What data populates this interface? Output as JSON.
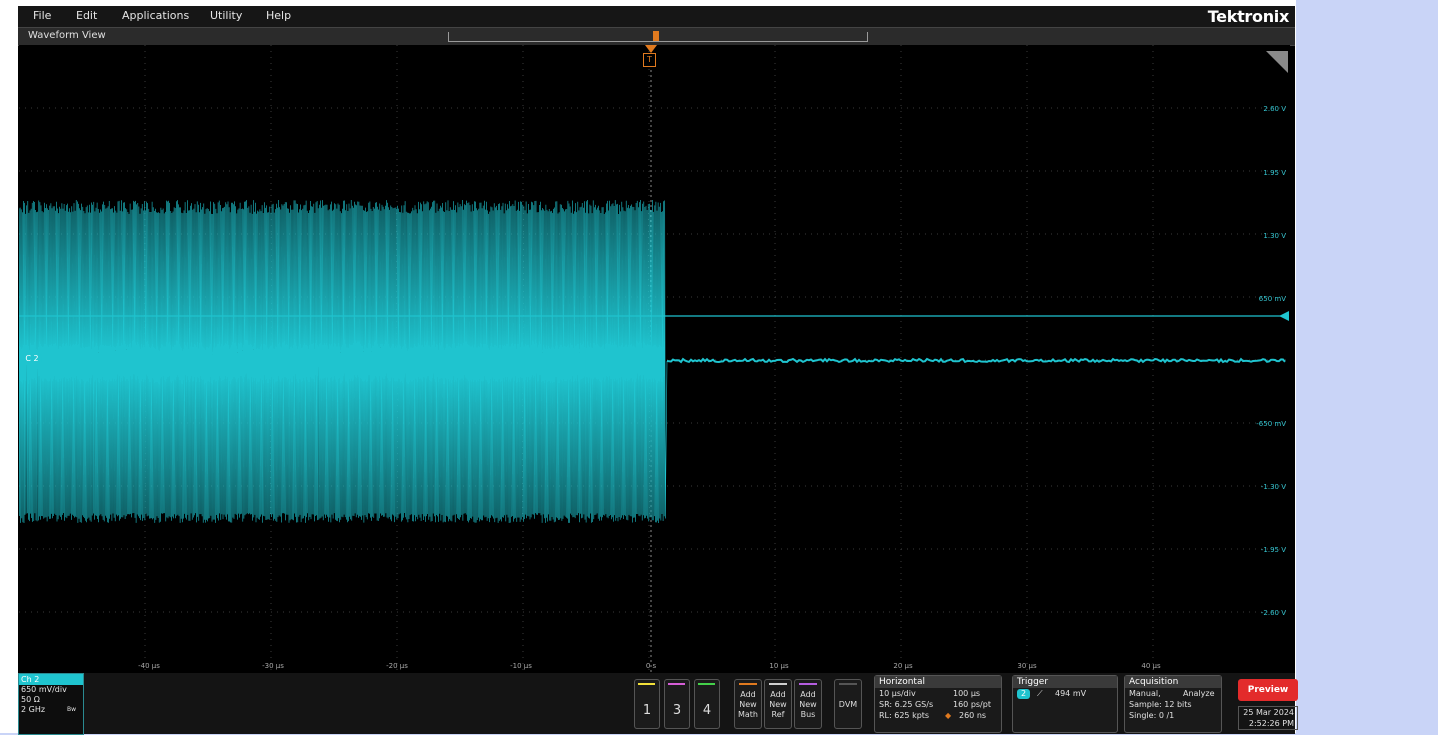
{
  "menu": {
    "items": [
      "File",
      "Edit",
      "Applications",
      "Utility",
      "Help"
    ],
    "brand": "Tektronix"
  },
  "waveform_view": {
    "title": "Waveform View",
    "trigger_marker": "T"
  },
  "y_labels": [
    "2.60 V",
    "1.95 V",
    "1.30 V",
    "650 mV",
    "-650 mV",
    "-1.30 V",
    "-1.95 V",
    "-2.60 V"
  ],
  "x_labels": [
    "-40 µs",
    "-30 µs",
    "-20 µs",
    "-10 µs",
    "0 s",
    "10 µs",
    "20 µs",
    "30 µs",
    "40 µs"
  ],
  "ch2_tag": "C 2",
  "ch2": {
    "title": "Ch 2",
    "scale": "650 mV/div",
    "impedance": "50 Ω",
    "bandwidth": "2 GHz",
    "bw_icon": "Bw"
  },
  "channel_buttons": [
    {
      "label": "1",
      "color": "#f2e03a"
    },
    {
      "label": "3",
      "color": "#d55ed6"
    },
    {
      "label": "4",
      "color": "#44d04a"
    }
  ],
  "add_buttons": [
    {
      "line1": "Add",
      "line2": "New",
      "line3": "Math",
      "color": "#e07a1f"
    },
    {
      "line1": "Add",
      "line2": "New",
      "line3": "Ref",
      "color": "#cfcfcf"
    },
    {
      "line1": "Add",
      "line2": "New",
      "line3": "Bus",
      "color": "#b55ee0"
    }
  ],
  "dvm": "DVM",
  "horizontal": {
    "title": "Horizontal",
    "scale": "10 µs/div",
    "duration": "100 µs",
    "sr": "SR: 6.25 GS/s",
    "res": "160 ps/pt",
    "rl": "RL: 625 kpts",
    "pos": "260 ns"
  },
  "trigger": {
    "title": "Trigger",
    "source": "2",
    "level": "494 mV"
  },
  "acquisition": {
    "title": "Acquisition",
    "mode": "Manual,",
    "analyze": "Analyze",
    "sample": "Sample: 12 bits",
    "single": "Single: 0 /1"
  },
  "preview": "Preview",
  "date": "25 Mar 2024",
  "time": "2:52:26 PM",
  "colors": {
    "trace": "#1fc4cf",
    "trigger": "#e07a1f"
  }
}
